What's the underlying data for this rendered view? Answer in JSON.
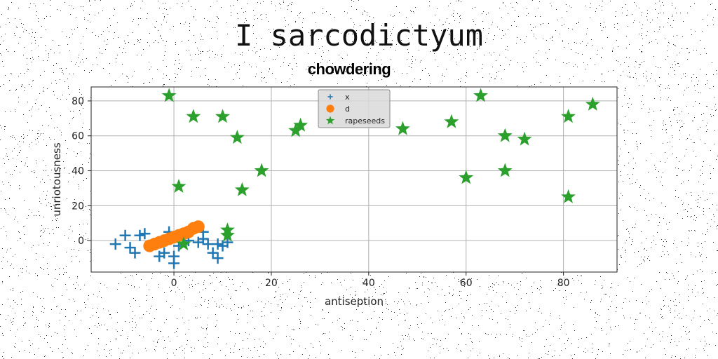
{
  "figure": {
    "suptitle": "I sarcodictyum",
    "title": "chowdering"
  },
  "chart_data": {
    "type": "scatter",
    "xlabel": "antiseption",
    "ylabel": "unriotousness",
    "xlim": [
      -17,
      91
    ],
    "ylim": [
      -18,
      88
    ],
    "xticks": [
      0,
      20,
      40,
      60,
      80
    ],
    "yticks": [
      0,
      20,
      40,
      60,
      80
    ],
    "grid": true,
    "legend_position": "top-center",
    "series": [
      {
        "name": "x",
        "marker": "plus",
        "color": "#1f77b4",
        "points": [
          [
            -12,
            -2
          ],
          [
            -10,
            3
          ],
          [
            -9,
            -4
          ],
          [
            -8,
            -7
          ],
          [
            -7,
            3
          ],
          [
            -6,
            4
          ],
          [
            -3,
            -9
          ],
          [
            -2,
            -7
          ],
          [
            -1,
            5
          ],
          [
            0,
            -9
          ],
          [
            0,
            -13
          ],
          [
            1,
            -3
          ],
          [
            3,
            0
          ],
          [
            5,
            -1
          ],
          [
            6,
            5
          ],
          [
            6,
            1
          ],
          [
            7,
            -2
          ],
          [
            8,
            -7
          ],
          [
            9,
            -10
          ],
          [
            9,
            -2
          ],
          [
            10,
            -3
          ],
          [
            11,
            -1
          ]
        ]
      },
      {
        "name": "d",
        "marker": "circle",
        "color": "#ff7f0e",
        "points": [
          [
            -5,
            -3
          ],
          [
            -4,
            -2
          ],
          [
            -3,
            -1
          ],
          [
            -2,
            0
          ],
          [
            -1,
            1
          ],
          [
            0,
            2
          ],
          [
            1,
            3
          ],
          [
            2,
            4
          ],
          [
            3,
            5
          ],
          [
            4,
            7
          ],
          [
            5,
            8
          ]
        ]
      },
      {
        "name": "rapeseeds",
        "marker": "star",
        "color": "#2ca02c",
        "points": [
          [
            -1,
            83
          ],
          [
            4,
            71
          ],
          [
            10,
            71
          ],
          [
            13,
            59
          ],
          [
            18,
            40
          ],
          [
            14,
            29
          ],
          [
            1,
            31
          ],
          [
            2,
            -2
          ],
          [
            11,
            6
          ],
          [
            11,
            3
          ],
          [
            25,
            63
          ],
          [
            26,
            66
          ],
          [
            47,
            64
          ],
          [
            57,
            68
          ],
          [
            63,
            83
          ],
          [
            60,
            36
          ],
          [
            68,
            60
          ],
          [
            68,
            40
          ],
          [
            72,
            58
          ],
          [
            81,
            71
          ],
          [
            86,
            78
          ],
          [
            81,
            25
          ]
        ]
      }
    ]
  }
}
